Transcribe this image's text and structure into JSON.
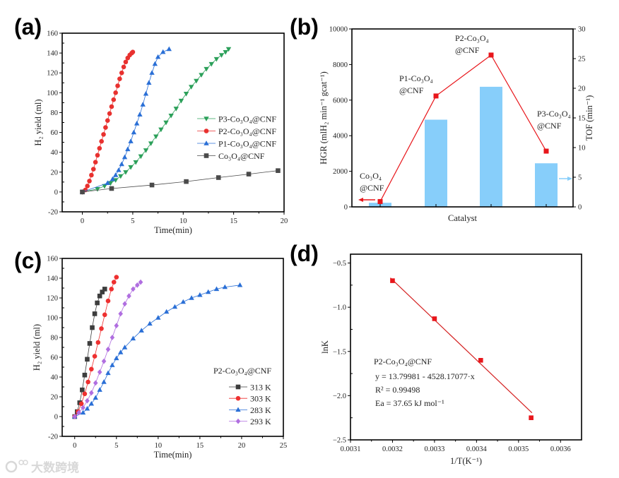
{
  "panel_labels": [
    "(a)",
    "(b)",
    "(c)",
    "(d)"
  ],
  "watermark": "大数跨境",
  "chart_data": [
    {
      "id": "a",
      "type": "scatter",
      "xlabel": "Time(min)",
      "ylabel": "H₂ yield (ml)",
      "xlim": [
        -2,
        20
      ],
      "ylim": [
        -20,
        160
      ],
      "xticks": [
        0,
        5,
        10,
        15,
        20
      ],
      "yticks": [
        -20,
        0,
        20,
        40,
        60,
        80,
        100,
        120,
        140,
        160
      ],
      "legend": "right-middle",
      "series": [
        {
          "name": "P3-Co₃O₄@CNF",
          "color": "#2ca05a",
          "marker": "tri-down",
          "x": [
            0,
            1.5,
            2.2,
            2.8,
            3.3,
            3.8,
            4.3,
            4.8,
            5.3,
            5.8,
            6.3,
            6.8,
            7.3,
            7.8,
            8.3,
            8.8,
            9.3,
            9.8,
            10.3,
            10.8,
            11.3,
            11.8,
            12.3,
            12.8,
            13.3,
            13.8,
            14.2,
            14.5
          ],
          "y": [
            0,
            3,
            6,
            9,
            12,
            16,
            20,
            25,
            30,
            36,
            42,
            49,
            56,
            63,
            70,
            77,
            84,
            92,
            99,
            106,
            112,
            118,
            124,
            129,
            134,
            138,
            141,
            144
          ]
        },
        {
          "name": "P2-Co₃O₄@CNF",
          "color": "#e8312f",
          "marker": "circle",
          "x": [
            0,
            0.3,
            0.5,
            0.7,
            0.9,
            1.1,
            1.3,
            1.5,
            1.7,
            1.9,
            2.1,
            2.3,
            2.5,
            2.7,
            2.9,
            3.1,
            3.3,
            3.5,
            3.7,
            3.9,
            4.1,
            4.3,
            4.5,
            4.7,
            4.9,
            5.0
          ],
          "y": [
            0,
            2,
            6,
            11,
            17,
            23,
            30,
            37,
            44,
            51,
            58,
            65,
            72,
            79,
            86,
            93,
            100,
            107,
            114,
            120,
            126,
            131,
            135,
            138,
            140,
            141
          ]
        },
        {
          "name": "P1-Co₃O₄@CNF",
          "color": "#2a6fd6",
          "marker": "tri-up",
          "x": [
            0,
            2.5,
            3.0,
            3.3,
            3.6,
            3.9,
            4.2,
            4.5,
            4.8,
            5.1,
            5.4,
            5.7,
            6.0,
            6.3,
            6.6,
            6.9,
            7.2,
            7.5,
            8.0,
            8.6
          ],
          "y": [
            0,
            9,
            13,
            17,
            22,
            28,
            35,
            43,
            51,
            60,
            69,
            78,
            88,
            99,
            110,
            120,
            129,
            136,
            141,
            144
          ]
        },
        {
          "name": "Co₃O₄@CNF",
          "color": "#4a4a4a",
          "marker": "square",
          "x": [
            0,
            2.9,
            6.9,
            10.3,
            13.5,
            16.5,
            19.4
          ],
          "y": [
            0,
            3.5,
            7,
            10.5,
            14.5,
            18,
            21.5
          ]
        }
      ]
    },
    {
      "id": "b",
      "type": "bar",
      "xlabel": "Catalyst",
      "ylabel": "HGR (mlH₂ min⁻¹ gcat⁻¹)",
      "y2label": "TOF (min⁻¹)",
      "ylim": [
        0,
        10000
      ],
      "y2lim": [
        0,
        30
      ],
      "yticks": [
        0,
        2000,
        4000,
        6000,
        8000,
        10000
      ],
      "y2ticks": [
        0,
        5,
        10,
        15,
        20,
        25,
        30
      ],
      "categories": [
        {
          "line1": "Co₃O₄",
          "line2": "@CNF"
        },
        {
          "line1": "P1-Co₃O₄",
          "line2": "@CNF"
        },
        {
          "line1": "P2-Co₃O₄",
          "line2": "@CNF"
        },
        {
          "line1": "P3-Co₃O₄",
          "line2": "@CNF"
        }
      ],
      "bar_series": {
        "name": "HGR",
        "color": "#87cefa",
        "values": [
          230,
          4900,
          6750,
          2450
        ]
      },
      "line_series": {
        "name": "TOF",
        "color": "#e8161b",
        "values": [
          0.9,
          18.7,
          25.6,
          9.4
        ]
      }
    },
    {
      "id": "c",
      "type": "scatter",
      "xlabel": "Time(min)",
      "ylabel": "H₂ yield (ml)",
      "xlim": [
        -1.5,
        25
      ],
      "ylim": [
        -20,
        160
      ],
      "xticks": [
        0,
        5,
        10,
        15,
        20,
        25
      ],
      "yticks": [
        -20,
        0,
        20,
        40,
        60,
        80,
        100,
        120,
        140,
        160
      ],
      "legend_title": "P2-Co₃O₄@CNF",
      "legend": "bottom-right",
      "series": [
        {
          "name": "313 K",
          "color": "#3d3d3d",
          "marker": "square",
          "x": [
            0,
            0.3,
            0.6,
            0.9,
            1.2,
            1.5,
            1.8,
            2.1,
            2.4,
            2.7,
            3.0,
            3.3,
            3.6
          ],
          "y": [
            0,
            5,
            14,
            27,
            42,
            58,
            74,
            90,
            104,
            115,
            122,
            126,
            129
          ]
        },
        {
          "name": "303 K",
          "color": "#ee3030",
          "marker": "circle",
          "x": [
            0,
            0.4,
            0.8,
            1.2,
            1.6,
            2.0,
            2.4,
            2.8,
            3.2,
            3.6,
            4.0,
            4.4,
            4.7,
            5.0
          ],
          "y": [
            0,
            5,
            13,
            23,
            35,
            48,
            61,
            75,
            89,
            103,
            117,
            129,
            136,
            141
          ]
        },
        {
          "name": "283 K",
          "color": "#2a6fd6",
          "marker": "tri-up",
          "x": [
            0,
            1,
            1.5,
            2,
            2.5,
            3,
            3.5,
            4,
            4.5,
            5,
            5.5,
            6,
            7,
            8,
            9,
            10,
            11,
            12,
            13,
            14,
            15,
            16,
            17,
            18,
            19.8
          ],
          "y": [
            0,
            4,
            8,
            13,
            19,
            27,
            35,
            44,
            52,
            59,
            65,
            70,
            79,
            87,
            94,
            100,
            106,
            111,
            116,
            120,
            123,
            126,
            129,
            131,
            133
          ]
        },
        {
          "name": "293 K",
          "color": "#b06ee0",
          "marker": "diamond",
          "x": [
            0,
            0.5,
            1,
            1.5,
            2,
            2.5,
            3,
            3.5,
            4,
            4.5,
            5,
            5.5,
            6,
            6.5,
            7,
            7.5,
            7.9
          ],
          "y": [
            0,
            4,
            9,
            16,
            24,
            34,
            45,
            56,
            68,
            80,
            92,
            104,
            114,
            122,
            129,
            133,
            136
          ]
        }
      ]
    },
    {
      "id": "d",
      "type": "scatter",
      "xlabel": "1/T(K⁻¹)",
      "ylabel": "lnK",
      "xlim": [
        0.0031,
        0.00365
      ],
      "ylim": [
        -2.5,
        -0.4
      ],
      "xticks": [
        "0.0031",
        "0.0032",
        "0.0033",
        "0.0034",
        "0.0035",
        "0.0036"
      ],
      "yticks": [
        "−2.5",
        "−2.0",
        "−1.5",
        "−1.0",
        "−0.5"
      ],
      "series": [
        {
          "name": "P2-Co₃O₄@CNF",
          "color": "#e8161b",
          "marker": "square",
          "x": [
            0.0032,
            0.0033,
            0.00341,
            0.00353
          ],
          "y": [
            -0.7,
            -1.13,
            -1.6,
            -2.25
          ]
        }
      ],
      "fit": {
        "intercept": 13.79981,
        "slope": -4528.17077,
        "x_range": [
          0.003195,
          0.003532
        ]
      },
      "annotations": {
        "title": "P2-Co₃O₄@CNF",
        "equation": "y = 13.79981 - 4528.17077·x",
        "r2": "R² = 0.99498",
        "ea": "Ea =  37.65 kJ mol⁻¹"
      }
    }
  ]
}
